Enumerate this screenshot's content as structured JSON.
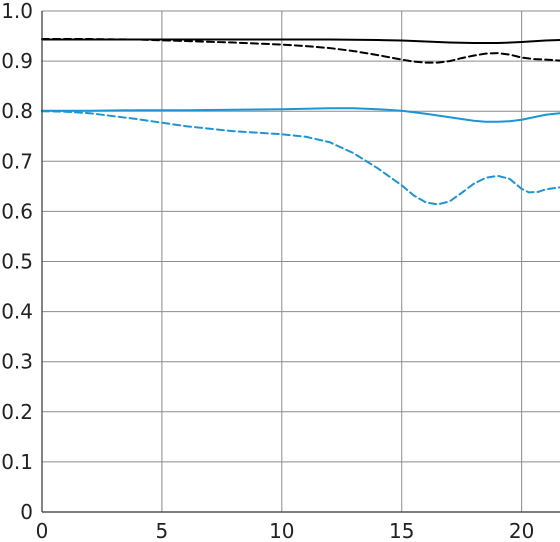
{
  "chart_data": {
    "type": "line",
    "title": "",
    "xlabel": "",
    "ylabel": "",
    "xlim": [
      0,
      21.6
    ],
    "ylim": [
      0,
      1.0
    ],
    "x_ticks": [
      0,
      5,
      10,
      15,
      20
    ],
    "x_tick_labels": [
      "0",
      "5",
      "10",
      "15",
      "20"
    ],
    "y_ticks": [
      0,
      0.1,
      0.2,
      0.3,
      0.4,
      0.5,
      0.6,
      0.7,
      0.8,
      0.9,
      1.0
    ],
    "y_tick_labels": [
      "0",
      "0.1",
      "0.2",
      "0.3",
      "0.4",
      "0.5",
      "0.6",
      "0.7",
      "0.8",
      "0.9",
      "1.0"
    ],
    "grid": true,
    "legend": "none",
    "series": [
      {
        "color": "#000000",
        "dash": "solid",
        "points": [
          [
            0,
            0.943
          ],
          [
            2,
            0.943
          ],
          [
            4,
            0.943
          ],
          [
            6,
            0.943
          ],
          [
            8,
            0.943
          ],
          [
            10,
            0.943
          ],
          [
            12,
            0.943
          ],
          [
            14,
            0.942
          ],
          [
            15,
            0.941
          ],
          [
            16,
            0.939
          ],
          [
            17,
            0.937
          ],
          [
            18,
            0.936
          ],
          [
            19,
            0.936
          ],
          [
            20,
            0.938
          ],
          [
            21,
            0.941
          ],
          [
            21.6,
            0.942
          ]
        ]
      },
      {
        "color": "#000000",
        "dash": "dashed",
        "points": [
          [
            0,
            0.944
          ],
          [
            2,
            0.944
          ],
          [
            4,
            0.943
          ],
          [
            6,
            0.94
          ],
          [
            8,
            0.937
          ],
          [
            10,
            0.933
          ],
          [
            11,
            0.93
          ],
          [
            12,
            0.926
          ],
          [
            13,
            0.92
          ],
          [
            14,
            0.912
          ],
          [
            15,
            0.903
          ],
          [
            15.5,
            0.899
          ],
          [
            16,
            0.897
          ],
          [
            16.5,
            0.897
          ],
          [
            17,
            0.9
          ],
          [
            17.5,
            0.906
          ],
          [
            18,
            0.911
          ],
          [
            18.5,
            0.915
          ],
          [
            19,
            0.916
          ],
          [
            19.5,
            0.913
          ],
          [
            20,
            0.907
          ],
          [
            20.5,
            0.904
          ],
          [
            21,
            0.903
          ],
          [
            21.6,
            0.901
          ]
        ]
      },
      {
        "color": "#1a96d4",
        "dash": "solid",
        "points": [
          [
            0,
            0.801
          ],
          [
            2,
            0.801
          ],
          [
            4,
            0.802
          ],
          [
            6,
            0.802
          ],
          [
            8,
            0.803
          ],
          [
            10,
            0.804
          ],
          [
            11,
            0.805
          ],
          [
            12,
            0.806
          ],
          [
            13,
            0.806
          ],
          [
            14,
            0.804
          ],
          [
            15,
            0.801
          ],
          [
            16,
            0.795
          ],
          [
            17,
            0.788
          ],
          [
            18,
            0.781
          ],
          [
            18.5,
            0.779
          ],
          [
            19,
            0.779
          ],
          [
            19.5,
            0.78
          ],
          [
            20,
            0.783
          ],
          [
            20.5,
            0.788
          ],
          [
            21,
            0.793
          ],
          [
            21.6,
            0.796
          ]
        ]
      },
      {
        "color": "#1a96d4",
        "dash": "dashed",
        "points": [
          [
            0,
            0.8
          ],
          [
            1,
            0.799
          ],
          [
            2,
            0.796
          ],
          [
            3,
            0.79
          ],
          [
            4,
            0.784
          ],
          [
            5,
            0.777
          ],
          [
            6,
            0.77
          ],
          [
            7,
            0.765
          ],
          [
            8,
            0.76
          ],
          [
            9,
            0.757
          ],
          [
            10,
            0.754
          ],
          [
            11,
            0.749
          ],
          [
            12,
            0.738
          ],
          [
            13,
            0.716
          ],
          [
            14,
            0.686
          ],
          [
            15,
            0.652
          ],
          [
            15.5,
            0.632
          ],
          [
            16,
            0.618
          ],
          [
            16.5,
            0.614
          ],
          [
            17,
            0.62
          ],
          [
            17.5,
            0.637
          ],
          [
            18,
            0.655
          ],
          [
            18.5,
            0.667
          ],
          [
            19,
            0.671
          ],
          [
            19.5,
            0.665
          ],
          [
            20,
            0.645
          ],
          [
            20.3,
            0.638
          ],
          [
            20.7,
            0.639
          ],
          [
            21,
            0.644
          ],
          [
            21.6,
            0.648
          ]
        ]
      }
    ]
  }
}
